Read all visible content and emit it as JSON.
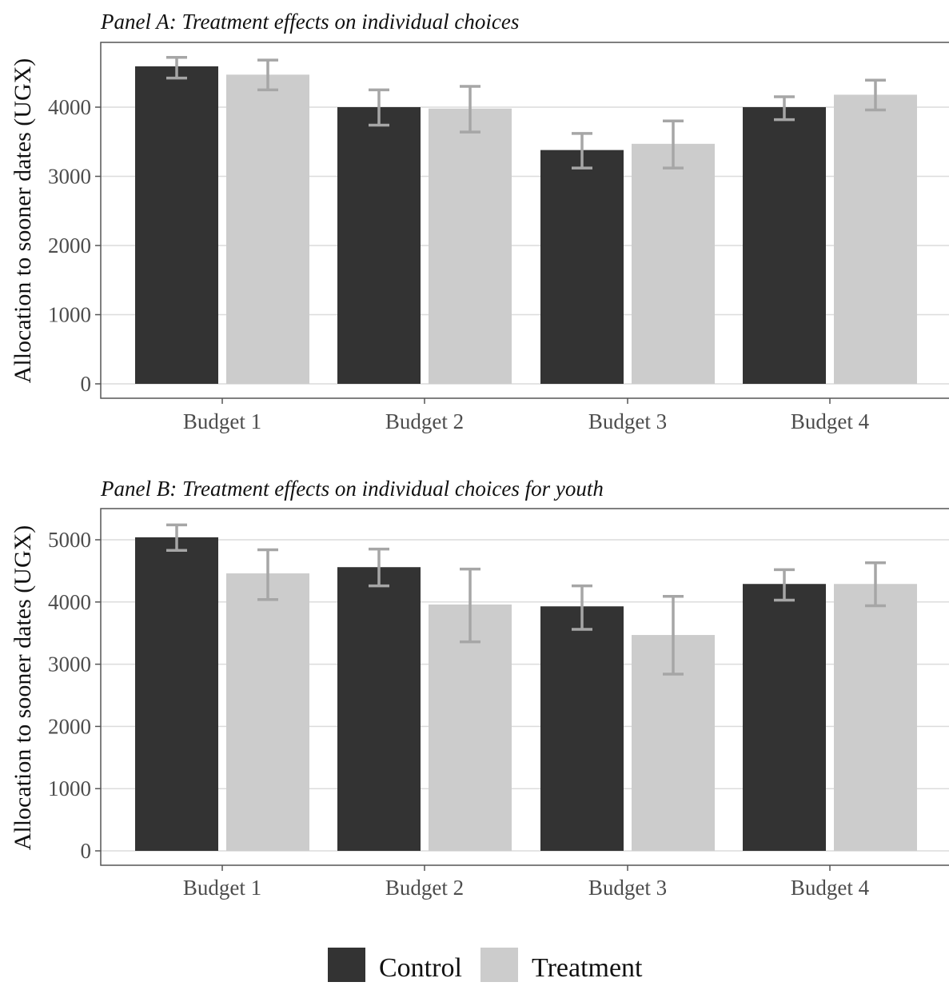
{
  "colors": {
    "control": "#333333",
    "treatment": "#cccccc",
    "error_bar": "#a6a6a6",
    "grid": "#dcdcdc",
    "panel_border": "#555555"
  },
  "legend": {
    "position": "bottom",
    "items": [
      {
        "label": "Control",
        "color": "#333333"
      },
      {
        "label": "Treatment",
        "color": "#cccccc"
      }
    ]
  },
  "chart_data": [
    {
      "type": "bar",
      "title": "Panel A: Treatment effects on individual choices",
      "ylabel": "Allocation to sooner dates (UGX)",
      "xlabel": "",
      "categories": [
        "Budget 1",
        "Budget 2",
        "Budget 3",
        "Budget 4"
      ],
      "ylim": [
        0,
        4800
      ],
      "yticks": [
        0,
        1000,
        2000,
        3000,
        4000
      ],
      "grid": true,
      "series": [
        {
          "name": "Control",
          "values": [
            4590,
            4000,
            3380,
            4000
          ],
          "err_low": [
            4420,
            3740,
            3120,
            3820
          ],
          "err_high": [
            4720,
            4250,
            3620,
            4150
          ]
        },
        {
          "name": "Treatment",
          "values": [
            4470,
            3980,
            3470,
            4180
          ],
          "err_low": [
            4250,
            3640,
            3120,
            3960
          ],
          "err_high": [
            4680,
            4300,
            3800,
            4390
          ]
        }
      ]
    },
    {
      "type": "bar",
      "title": "Panel B: Treatment effects on individual choices for youth",
      "ylabel": "Allocation to sooner dates (UGX)",
      "xlabel": "",
      "categories": [
        "Budget 1",
        "Budget 2",
        "Budget 3",
        "Budget 4"
      ],
      "ylim": [
        0,
        5500
      ],
      "yticks": [
        0,
        1000,
        2000,
        3000,
        4000,
        5000
      ],
      "grid": true,
      "series": [
        {
          "name": "Control",
          "values": [
            5040,
            4560,
            3930,
            4290
          ],
          "err_low": [
            4830,
            4260,
            3560,
            4030
          ],
          "err_high": [
            5240,
            4850,
            4260,
            4520
          ]
        },
        {
          "name": "Treatment",
          "values": [
            4460,
            3960,
            3470,
            4290
          ],
          "err_low": [
            4040,
            3360,
            2840,
            3940
          ],
          "err_high": [
            4840,
            4530,
            4090,
            4630
          ]
        }
      ]
    }
  ]
}
